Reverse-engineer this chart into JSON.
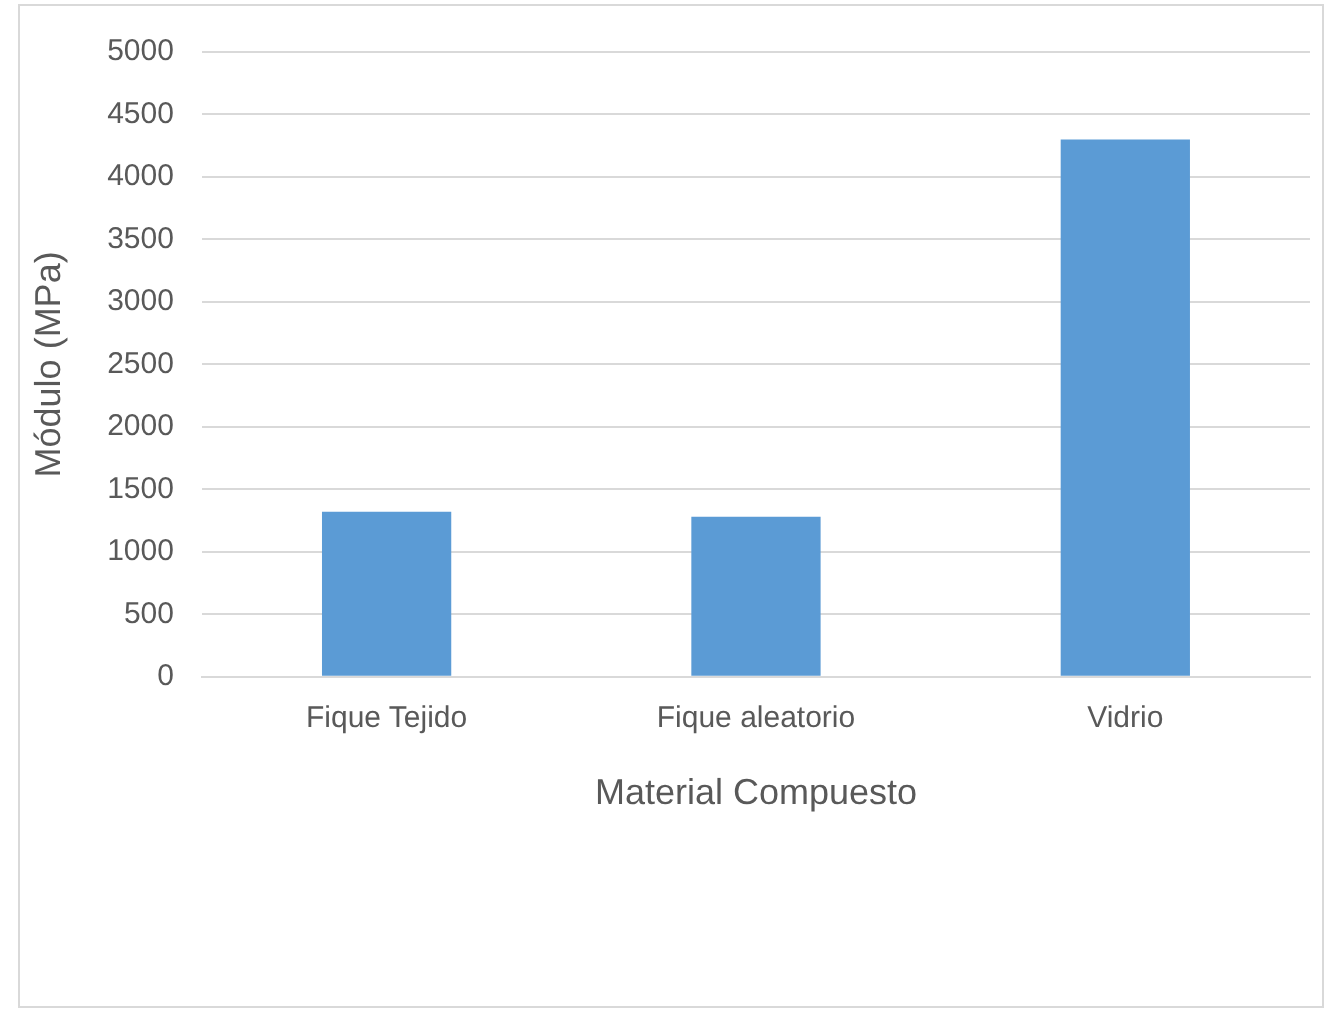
{
  "chart_data": {
    "type": "bar",
    "xlabel": "Material Compuesto",
    "ylabel": "Módulo (MPa)",
    "categories": [
      "Fique Tejido",
      "Fique aleatorio",
      "Vidrio"
    ],
    "values": [
      1320,
      1280,
      4300
    ],
    "color": "#5b9bd5",
    "ylim": [
      0,
      5000
    ],
    "yticks": [
      0,
      500,
      1000,
      1500,
      2000,
      2500,
      3000,
      3500,
      4000,
      4500,
      5000
    ],
    "grid": "y",
    "legend": false
  }
}
